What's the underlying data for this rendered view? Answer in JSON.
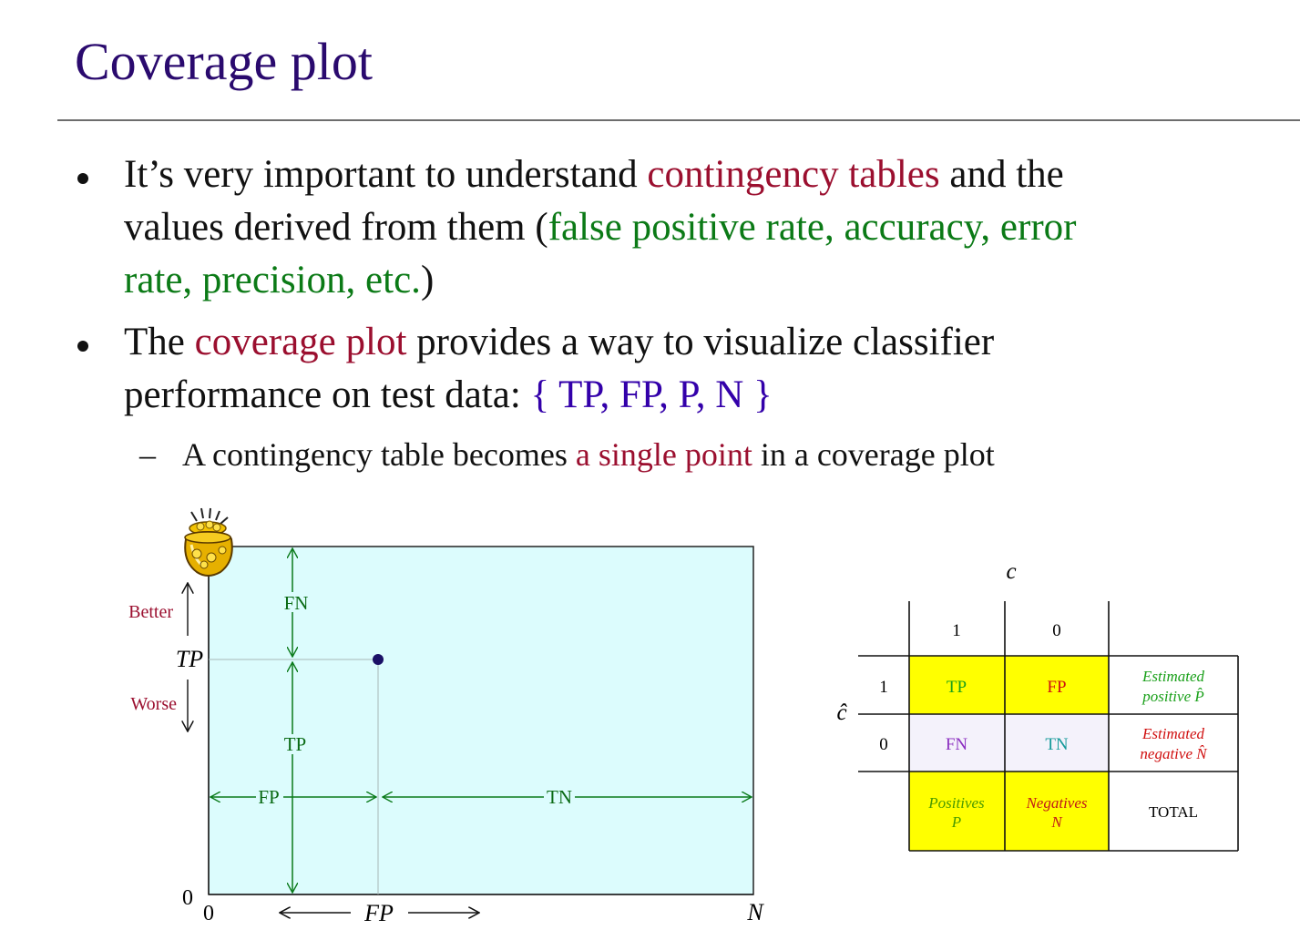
{
  "title": "Coverage plot",
  "bullets": [
    {
      "lines": [
        [
          {
            "text": "It’s very important to understand ",
            "color": "black"
          },
          {
            "text": "contingency tables",
            "color": "red"
          },
          {
            "text": " and the",
            "color": "black"
          }
        ],
        [
          {
            "text": "values derived from them (",
            "color": "black"
          },
          {
            "text": "false positive rate, accuracy, error",
            "color": "green"
          }
        ],
        [
          {
            "text": "rate, precision, etc.",
            "color": "green"
          },
          {
            "text": ")",
            "color": "black"
          }
        ]
      ]
    },
    {
      "lines": [
        [
          {
            "text": "The ",
            "color": "black"
          },
          {
            "text": "coverage plot",
            "color": "red"
          },
          {
            "text": " provides a way to visualize classifier",
            "color": "black"
          }
        ],
        [
          {
            "text": "performance on test data: ",
            "color": "black"
          },
          {
            "text": "{ TP, FP, P, N }",
            "color": "blue"
          }
        ]
      ]
    }
  ],
  "sub_bullet": {
    "dash": "–",
    "parts": [
      {
        "text": "A contingency table becomes ",
        "color": "black"
      },
      {
        "text": "a single point",
        "color": "red"
      },
      {
        "text": " in a coverage plot",
        "color": "black"
      }
    ]
  },
  "plot": {
    "y_axis_label": "TP",
    "x_axis_label": "FP",
    "x_origin": "0",
    "y_origin": "0",
    "x_max_label": "N",
    "better": "Better",
    "worse": "Worse",
    "region_labels": {
      "fn": "FN",
      "tp": "TP",
      "fp": "FP",
      "tn": "TN"
    },
    "colors": {
      "fill": "#dcfcfd",
      "arrows": "#0a7a1a",
      "point": "#1a1066",
      "labels": "#9b0f2f"
    }
  },
  "table": {
    "c_header": "c",
    "chat_label": "ĉ",
    "col_values": [
      "1",
      "0"
    ],
    "row_values": [
      "1",
      "0"
    ],
    "cells": {
      "tp": "TP",
      "fp": "FP",
      "fn": "FN",
      "tn": "TN",
      "est_pos": [
        "Estimated",
        "positive P̂"
      ],
      "est_neg": [
        "Estimated",
        "negative N̂"
      ],
      "positives": [
        "Positives",
        "P"
      ],
      "negatives": [
        "Negatives",
        "N"
      ],
      "total": "TOTAL"
    },
    "colors": {
      "yellow": "#ffff00",
      "pale": "#f4f2fb",
      "green_text": "#1aa01a",
      "red_text": "#d01010",
      "purple_text": "#8b2fc0",
      "teal_text": "#159a9a",
      "yellow_text": "#5a9a00"
    }
  }
}
